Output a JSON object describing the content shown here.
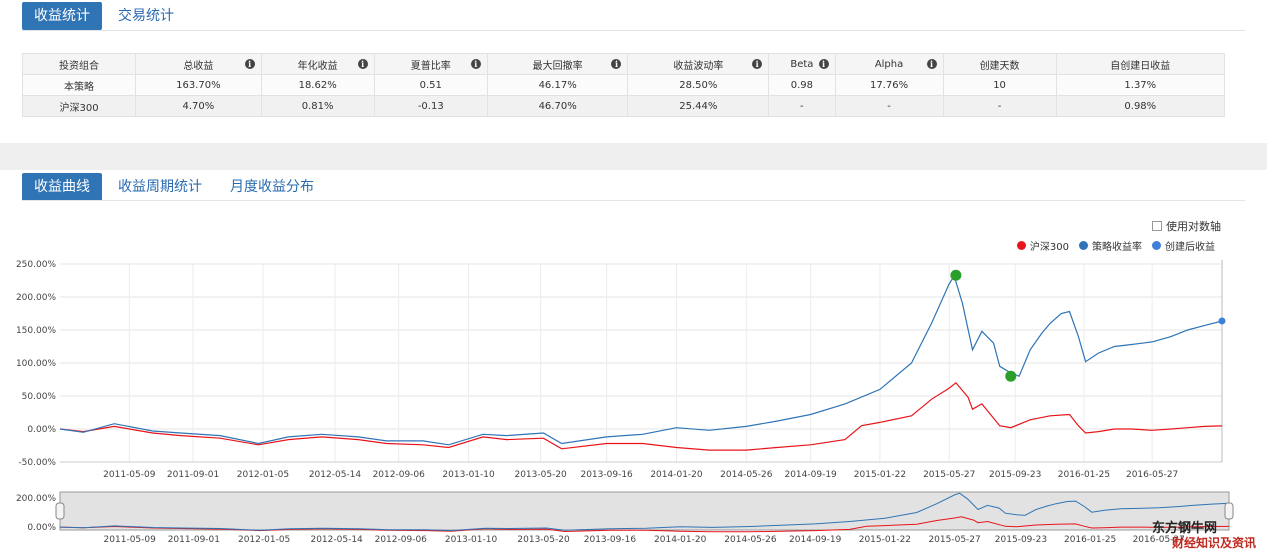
{
  "top_tabs": [
    {
      "label": "收益统计",
      "active": true
    },
    {
      "label": "交易统计",
      "active": false
    }
  ],
  "stats_table": {
    "headers": [
      "投资组合",
      "总收益",
      "年化收益",
      "夏普比率",
      "最大回撤率",
      "收益波动率",
      "Beta",
      "Alpha",
      "创建天数",
      "自创建日收益"
    ],
    "info_icon_columns": [
      1,
      2,
      3,
      4,
      5,
      6,
      7
    ],
    "rows": [
      [
        "本策略",
        "163.70%",
        "18.62%",
        "0.51",
        "46.17%",
        "28.50%",
        "0.98",
        "17.76%",
        "10",
        "1.37%"
      ],
      [
        "沪深300",
        "4.70%",
        "0.81%",
        "-0.13",
        "46.70%",
        "25.44%",
        "-",
        "-",
        "-",
        "0.98%"
      ]
    ]
  },
  "chart_tabs": [
    {
      "label": "收益曲线",
      "active": true
    },
    {
      "label": "收益周期统计",
      "active": false
    },
    {
      "label": "月度收益分布",
      "active": false
    }
  ],
  "log_axis_option": {
    "label": "使用对数轴",
    "checked": false
  },
  "legend": [
    {
      "name": "沪深300",
      "color": "#e8141a"
    },
    {
      "name": "策略收益率",
      "color": "#2f74b5"
    },
    {
      "name": "创建后收益",
      "color": "#3d7fd9"
    }
  ],
  "watermark": {
    "line1": "东方钢牛网",
    "line2": "财经知识及资讯"
  },
  "chart_data": {
    "type": "line",
    "x_ticks": [
      "2011-05-09",
      "2011-09-01",
      "2012-01-05",
      "2012-05-14",
      "2012-09-06",
      "2013-01-10",
      "2013-05-20",
      "2013-09-16",
      "2014-01-20",
      "2014-05-26",
      "2014-09-19",
      "2015-01-22",
      "2015-05-27",
      "2015-09-23",
      "2016-01-25",
      "2016-05-27"
    ],
    "y_ticks": [
      "250.00%",
      "200.00%",
      "150.00%",
      "100.00%",
      "50.00%",
      "0.00%",
      "-50.00%"
    ],
    "ylim": [
      -50,
      250
    ],
    "navigator_y_ticks": [
      "200.00%",
      "0.00%"
    ],
    "x_start": "2011-01-04",
    "x_end": "2016-09-30",
    "grid": true,
    "series": [
      {
        "name": "策略收益率",
        "color": "#2f74b5",
        "points": [
          [
            "2011-01-04",
            0
          ],
          [
            "2011-02-15",
            -5
          ],
          [
            "2011-04-12",
            8
          ],
          [
            "2011-06-20",
            -3
          ],
          [
            "2011-08-10",
            -6
          ],
          [
            "2011-10-20",
            -10
          ],
          [
            "2011-12-28",
            -22
          ],
          [
            "2012-02-20",
            -12
          ],
          [
            "2012-04-20",
            -8
          ],
          [
            "2012-06-25",
            -12
          ],
          [
            "2012-08-15",
            -18
          ],
          [
            "2012-10-20",
            -18
          ],
          [
            "2012-12-05",
            -24
          ],
          [
            "2013-02-05",
            -8
          ],
          [
            "2013-03-20",
            -10
          ],
          [
            "2013-05-25",
            -6
          ],
          [
            "2013-06-27",
            -22
          ],
          [
            "2013-09-16",
            -12
          ],
          [
            "2013-11-20",
            -8
          ],
          [
            "2014-01-20",
            2
          ],
          [
            "2014-03-20",
            -2
          ],
          [
            "2014-05-26",
            4
          ],
          [
            "2014-07-20",
            12
          ],
          [
            "2014-09-19",
            22
          ],
          [
            "2014-11-20",
            38
          ],
          [
            "2015-01-22",
            60
          ],
          [
            "2015-03-20",
            100
          ],
          [
            "2015-04-25",
            160
          ],
          [
            "2015-05-27",
            220
          ],
          [
            "2015-06-05",
            232
          ],
          [
            "2015-06-20",
            190
          ],
          [
            "2015-07-08",
            120
          ],
          [
            "2015-07-25",
            148
          ],
          [
            "2015-08-15",
            130
          ],
          [
            "2015-08-26",
            95
          ],
          [
            "2015-09-15",
            85
          ],
          [
            "2015-09-30",
            80
          ],
          [
            "2015-10-20",
            120
          ],
          [
            "2015-11-10",
            145
          ],
          [
            "2015-11-25",
            160
          ],
          [
            "2015-12-15",
            175
          ],
          [
            "2015-12-30",
            178
          ],
          [
            "2016-01-15",
            140
          ],
          [
            "2016-01-28",
            102
          ],
          [
            "2016-02-20",
            115
          ],
          [
            "2016-03-20",
            125
          ],
          [
            "2016-04-20",
            128
          ],
          [
            "2016-05-27",
            132
          ],
          [
            "2016-06-30",
            140
          ],
          [
            "2016-07-30",
            150
          ],
          [
            "2016-08-30",
            157
          ],
          [
            "2016-09-30",
            163.7
          ]
        ]
      },
      {
        "name": "沪深300",
        "color": "#e8141a",
        "points": [
          [
            "2011-01-04",
            0
          ],
          [
            "2011-02-15",
            -4
          ],
          [
            "2011-04-12",
            4
          ],
          [
            "2011-06-20",
            -6
          ],
          [
            "2011-08-10",
            -10
          ],
          [
            "2011-10-20",
            -14
          ],
          [
            "2011-12-28",
            -24
          ],
          [
            "2012-02-20",
            -16
          ],
          [
            "2012-04-20",
            -12
          ],
          [
            "2012-06-25",
            -16
          ],
          [
            "2012-08-15",
            -22
          ],
          [
            "2012-10-20",
            -24
          ],
          [
            "2012-12-05",
            -28
          ],
          [
            "2013-02-05",
            -12
          ],
          [
            "2013-03-20",
            -16
          ],
          [
            "2013-05-25",
            -14
          ],
          [
            "2013-06-27",
            -30
          ],
          [
            "2013-09-16",
            -22
          ],
          [
            "2013-11-20",
            -22
          ],
          [
            "2014-01-20",
            -28
          ],
          [
            "2014-03-20",
            -32
          ],
          [
            "2014-05-26",
            -32
          ],
          [
            "2014-07-20",
            -28
          ],
          [
            "2014-09-19",
            -24
          ],
          [
            "2014-11-20",
            -16
          ],
          [
            "2014-12-20",
            5
          ],
          [
            "2015-01-22",
            10
          ],
          [
            "2015-03-20",
            20
          ],
          [
            "2015-04-25",
            45
          ],
          [
            "2015-05-27",
            62
          ],
          [
            "2015-06-08",
            70
          ],
          [
            "2015-06-30",
            48
          ],
          [
            "2015-07-08",
            30
          ],
          [
            "2015-07-25",
            38
          ],
          [
            "2015-08-26",
            5
          ],
          [
            "2015-09-15",
            2
          ],
          [
            "2015-10-20",
            14
          ],
          [
            "2015-11-25",
            20
          ],
          [
            "2015-12-30",
            22
          ],
          [
            "2016-01-15",
            5
          ],
          [
            "2016-01-28",
            -6
          ],
          [
            "2016-02-20",
            -4
          ],
          [
            "2016-03-20",
            0
          ],
          [
            "2016-04-20",
            0
          ],
          [
            "2016-05-27",
            -2
          ],
          [
            "2016-06-30",
            0
          ],
          [
            "2016-07-30",
            2
          ],
          [
            "2016-08-30",
            4
          ],
          [
            "2016-09-30",
            4.7
          ]
        ]
      }
    ],
    "markers": [
      {
        "series": "策略收益率",
        "date": "2015-06-08",
        "value": 233,
        "color": "#2aa02a"
      },
      {
        "series": "策略收益率",
        "date": "2015-09-15",
        "value": 80,
        "color": "#2aa02a"
      },
      {
        "series": "创建后收益",
        "date": "2016-09-30",
        "value": 163.7,
        "color": "#3d7fd9"
      }
    ]
  }
}
